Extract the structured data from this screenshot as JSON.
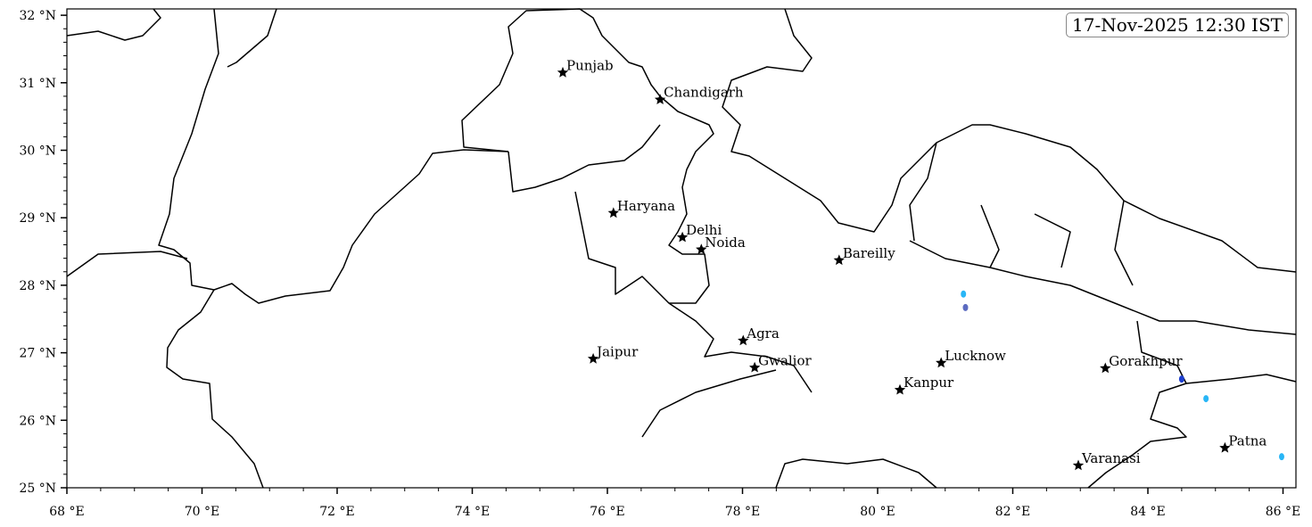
{
  "timestamp": "17-Nov-2025 12:30 IST",
  "map": {
    "lon_range": [
      68,
      86.2
    ],
    "lat_range": [
      25,
      32
    ],
    "x_ticks": [
      {
        "value": 68,
        "label": "68 °E"
      },
      {
        "value": 70,
        "label": "70 °E"
      },
      {
        "value": 72,
        "label": "72 °E"
      },
      {
        "value": 74,
        "label": "74 °E"
      },
      {
        "value": 76,
        "label": "76 °E"
      },
      {
        "value": 78,
        "label": "78 °E"
      },
      {
        "value": 80,
        "label": "80 °E"
      },
      {
        "value": 82,
        "label": "82 °E"
      },
      {
        "value": 84,
        "label": "84 °E"
      },
      {
        "value": 86,
        "label": "86 °E"
      }
    ],
    "y_ticks": [
      {
        "value": 25,
        "label": "25 °N"
      },
      {
        "value": 26,
        "label": "26 °N"
      },
      {
        "value": 27,
        "label": "27 °N"
      },
      {
        "value": 28,
        "label": "28 °N"
      },
      {
        "value": 29,
        "label": "29 °N"
      },
      {
        "value": 30,
        "label": "30 °N"
      },
      {
        "value": 31,
        "label": "31 °N"
      },
      {
        "value": 32,
        "label": "32 °N"
      }
    ],
    "marker_icon": "star-icon",
    "cities": [
      {
        "name": "Punjab",
        "lon": 75.34,
        "lat": 31.15
      },
      {
        "name": "Chandigarh",
        "lon": 76.78,
        "lat": 30.75
      },
      {
        "name": "Haryana",
        "lon": 76.09,
        "lat": 29.07
      },
      {
        "name": "Delhi",
        "lon": 77.11,
        "lat": 28.71
      },
      {
        "name": "Noida",
        "lon": 77.39,
        "lat": 28.53
      },
      {
        "name": "Bareilly",
        "lon": 79.43,
        "lat": 28.37
      },
      {
        "name": "Jaipur",
        "lon": 75.79,
        "lat": 26.91
      },
      {
        "name": "Agra",
        "lon": 78.01,
        "lat": 27.18
      },
      {
        "name": "Gwalior",
        "lon": 78.18,
        "lat": 26.78
      },
      {
        "name": "Lucknow",
        "lon": 80.94,
        "lat": 26.85
      },
      {
        "name": "Kanpur",
        "lon": 80.33,
        "lat": 26.45
      },
      {
        "name": "Gorakhpur",
        "lon": 83.37,
        "lat": 26.77
      },
      {
        "name": "Varanasi",
        "lon": 82.97,
        "lat": 25.33
      },
      {
        "name": "Patna",
        "lon": 85.14,
        "lat": 25.59
      }
    ],
    "precip_cells": [
      {
        "lon": 81.27,
        "lat": 27.87,
        "color": "#29b6f6"
      },
      {
        "lon": 81.3,
        "lat": 27.67,
        "color": "#5c6bc0"
      },
      {
        "lon": 84.5,
        "lat": 26.61,
        "color": "#1e40d0"
      },
      {
        "lon": 84.86,
        "lat": 26.32,
        "color": "#29b6f6"
      },
      {
        "lon": 85.98,
        "lat": 25.46,
        "color": "#29b6f6"
      }
    ]
  }
}
